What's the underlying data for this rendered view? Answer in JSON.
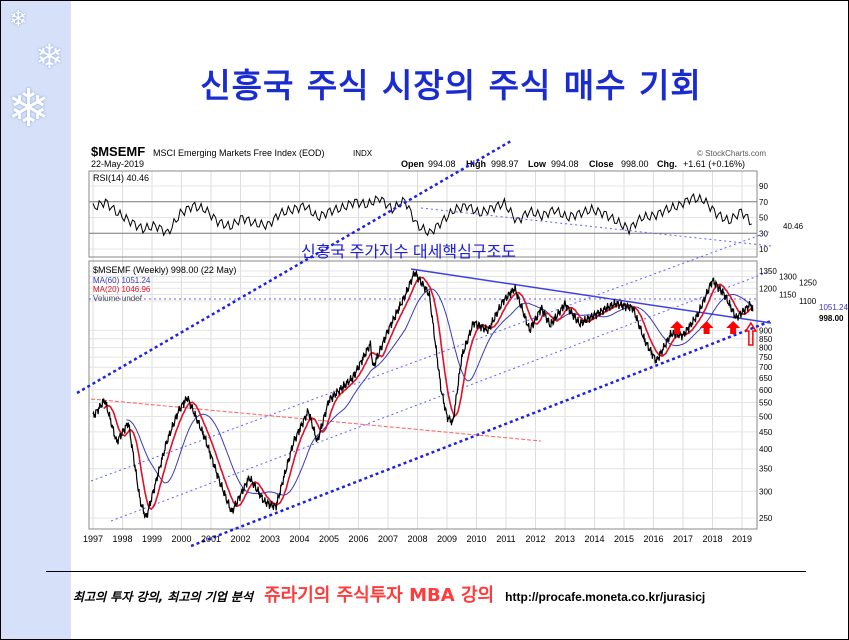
{
  "slide": {
    "title": "신흥국 주식 시장의 주식 매수 기회",
    "footer_tagline": "최고의 투자 강의, 최고의 기업 분석",
    "footer_brand": "쥬라기의 주식투자 MBA 강의",
    "footer_url": "http://procafe.moneta.co.kr/jurasicj"
  },
  "chart_data": {
    "type": "line",
    "symbol": "$MSEMF",
    "title": "MSCI Emerging Markets Free Index (EOD)",
    "exchange": "INDX",
    "date": "22-May-2019",
    "source": "© StockCharts.com",
    "quote": {
      "open_label": "Open",
      "open": "994.08",
      "high_label": "High",
      "high": "998.97",
      "low_label": "Low",
      "low": "994.08",
      "close_label": "Close",
      "close": "998.00",
      "chg_label": "Chg.",
      "chg": "+1.61 (+0.16%)"
    },
    "rsi_label": "RSI(14) 40.46",
    "rsi_ticks": [
      90,
      70,
      50,
      30,
      10
    ],
    "rsi_value_tag": "40.46",
    "price_label": "$MSEMF (Weekly) 998.00 (22 May)",
    "ma60_label": "MA(60) 1051.24",
    "ma20_label": "MA(20) 1046.96",
    "volume_label": "Volume undef",
    "annotation": "신흥국 주가지수 대세핵심구조도",
    "y_ticks": [
      1350,
      1300,
      1250,
      1200,
      1150,
      1100,
      900,
      850,
      800,
      750,
      700,
      650,
      600,
      550,
      500,
      450,
      400,
      350,
      300,
      250
    ],
    "y_tags": [
      "1051.24",
      "998.00"
    ],
    "ylim": [
      250,
      1350
    ],
    "yscale": "log",
    "x_ticks": [
      "1997",
      "1998",
      "1999",
      "2000",
      "2001",
      "2002",
      "2003",
      "2004",
      "2005",
      "2006",
      "2007",
      "2008",
      "2009",
      "2010",
      "2011",
      "2012",
      "2013",
      "2014",
      "2015",
      "2016",
      "2017",
      "2018",
      "2019"
    ],
    "colors": {
      "price": "#000000",
      "ma60": "#3a3ab8",
      "ma20": "#e0102a",
      "trend": "#2020e0",
      "resistance": "#ff6060",
      "arrow": "#ff0000"
    },
    "price": [
      [
        1997.0,
        500
      ],
      [
        1997.4,
        560
      ],
      [
        1997.8,
        420
      ],
      [
        1998.2,
        480
      ],
      [
        1998.6,
        280
      ],
      [
        1998.8,
        250
      ],
      [
        1999.5,
        420
      ],
      [
        1999.9,
        520
      ],
      [
        2000.2,
        570
      ],
      [
        2000.8,
        430
      ],
      [
        2001.3,
        320
      ],
      [
        2001.7,
        260
      ],
      [
        2002.3,
        330
      ],
      [
        2002.8,
        280
      ],
      [
        2003.2,
        270
      ],
      [
        2003.8,
        420
      ],
      [
        2004.3,
        520
      ],
      [
        2004.6,
        420
      ],
      [
        2005.0,
        560
      ],
      [
        2005.8,
        650
      ],
      [
        2006.4,
        820
      ],
      [
        2006.5,
        700
      ],
      [
        2007.0,
        900
      ],
      [
        2007.6,
        1150
      ],
      [
        2007.9,
        1340
      ],
      [
        2008.4,
        1150
      ],
      [
        2008.8,
        600
      ],
      [
        2009.0,
        500
      ],
      [
        2009.2,
        480
      ],
      [
        2009.5,
        750
      ],
      [
        2009.9,
        950
      ],
      [
        2010.4,
        900
      ],
      [
        2010.9,
        1100
      ],
      [
        2011.3,
        1200
      ],
      [
        2011.8,
        900
      ],
      [
        2012.2,
        1050
      ],
      [
        2012.5,
        930
      ],
      [
        2013.0,
        1080
      ],
      [
        2013.5,
        940
      ],
      [
        2014.0,
        1000
      ],
      [
        2014.7,
        1080
      ],
      [
        2015.3,
        1050
      ],
      [
        2015.7,
        840
      ],
      [
        2016.1,
        730
      ],
      [
        2016.6,
        880
      ],
      [
        2017.0,
        870
      ],
      [
        2017.5,
        1000
      ],
      [
        2018.0,
        1270
      ],
      [
        2018.4,
        1150
      ],
      [
        2018.8,
        980
      ],
      [
        2019.3,
        1080
      ],
      [
        2019.4,
        998
      ]
    ],
    "rsi": [
      62,
      70,
      55,
      45,
      35,
      40,
      30,
      55,
      65,
      60,
      45,
      38,
      50,
      42,
      40,
      55,
      60,
      65,
      50,
      58,
      62,
      70,
      66,
      75,
      60,
      72,
      40,
      30,
      45,
      60,
      65,
      55,
      62,
      68,
      45,
      58,
      52,
      60,
      50,
      55,
      60,
      55,
      45,
      35,
      50,
      52,
      60,
      65,
      75,
      72,
      55,
      45,
      58,
      40
    ],
    "arrows_at": [
      2016.8,
      2017.8,
      2018.7,
      2019.3
    ]
  }
}
